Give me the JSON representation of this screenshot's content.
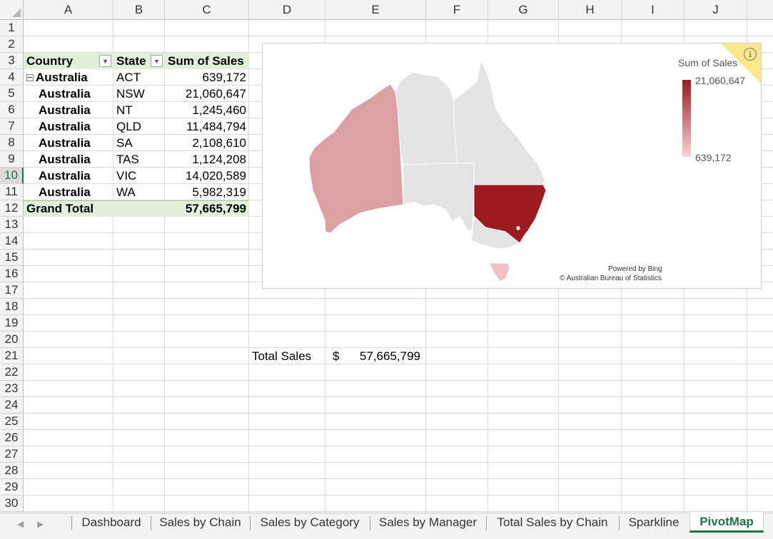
{
  "sheet": {
    "columns": [
      "A",
      "B",
      "C",
      "D",
      "E",
      "F",
      "G",
      "H",
      "I",
      "J"
    ],
    "rows": [
      "1",
      "2",
      "3",
      "4",
      "5",
      "6",
      "7",
      "8",
      "9",
      "10",
      "11",
      "12",
      "13",
      "14",
      "15",
      "16",
      "17",
      "18",
      "19",
      "20",
      "21",
      "22",
      "23",
      "24",
      "25",
      "26",
      "27",
      "28",
      "29",
      "30"
    ],
    "active_row": "10"
  },
  "pivot": {
    "headers": {
      "country": "Country",
      "state": "State",
      "sum": "Sum of Sales"
    },
    "rows": [
      {
        "country": "Australia",
        "state": "ACT",
        "sales": "639,172"
      },
      {
        "country": "Australia",
        "state": "NSW",
        "sales": "21,060,647"
      },
      {
        "country": "Australia",
        "state": "NT",
        "sales": "1,245,460"
      },
      {
        "country": "Australia",
        "state": "QLD",
        "sales": "11,484,794"
      },
      {
        "country": "Australia",
        "state": "SA",
        "sales": "2,108,610"
      },
      {
        "country": "Australia",
        "state": "TAS",
        "sales": "1,124,208"
      },
      {
        "country": "Australia",
        "state": "VIC",
        "sales": "14,020,589"
      },
      {
        "country": "Australia",
        "state": "WA",
        "sales": "5,982,319"
      }
    ],
    "grand_total_label": "Grand Total",
    "grand_total_value": "57,665,799"
  },
  "summary": {
    "label": "Total Sales",
    "currency": "$",
    "value": "57,665,799"
  },
  "map": {
    "legend_title": "Sum of Sales",
    "legend_max": "21,060,647",
    "legend_min": "639,172",
    "credit_line1": "Powered by Bing",
    "credit_line2": "© Australian Bureau of Statistics",
    "info_icon": "i",
    "colors": {
      "high": "#9b1b1f",
      "low": "#f7d4d6",
      "wa": "#dca0a3",
      "tas": "#f3c0c3",
      "nodata": "#e3e3e3"
    }
  },
  "tabs": [
    {
      "label": "Dashboard",
      "active": false
    },
    {
      "label": "Sales by Chain",
      "active": false
    },
    {
      "label": "Sales by Category",
      "active": false
    },
    {
      "label": "Sales by Manager",
      "active": false
    },
    {
      "label": "Total Sales by Chain",
      "active": false
    },
    {
      "label": "Sparkline",
      "active": false
    },
    {
      "label": "PivotMap",
      "active": true
    }
  ],
  "icons": {
    "prev": "tab-scroll-left-icon",
    "next": "tab-scroll-right-icon",
    "dropdown": "filter-dropdown-icon",
    "collapse": "collapse-icon"
  }
}
